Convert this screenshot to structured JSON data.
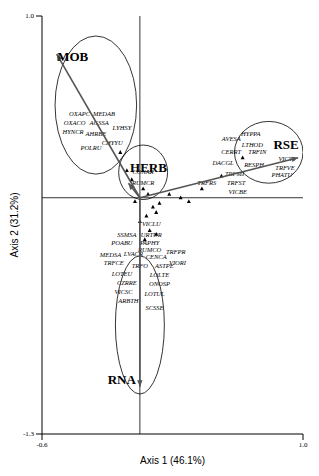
{
  "chart_data": {
    "type": "scatter",
    "x_label": "Axis 1 (46.1%)",
    "y_label": "Axis 2 (31.2%)",
    "xlim": [
      -0.6,
      1.0
    ],
    "ylim": [
      -1.3,
      1.0
    ],
    "xticks": [
      -0.6,
      {
        "value": 1.0,
        "label": "1.0"
      }
    ],
    "yticks": [
      -1.3,
      {
        "value": 1.0,
        "label": "1.0"
      }
    ],
    "reference_lines": {
      "x": 0,
      "y": 0
    },
    "marker": "triangle",
    "color": "#000000",
    "species": [
      {
        "label": "OXAPC",
        "x": -0.37,
        "y": 0.46
      },
      {
        "label": "MEDAB",
        "x": -0.22,
        "y": 0.46
      },
      {
        "label": "OXACO",
        "x": -0.4,
        "y": 0.41
      },
      {
        "label": "AGSSA",
        "x": -0.25,
        "y": 0.41
      },
      {
        "label": "HYNCR",
        "x": -0.41,
        "y": 0.36
      },
      {
        "label": "AHRBE",
        "x": -0.27,
        "y": 0.35
      },
      {
        "label": "LYHSY",
        "x": -0.11,
        "y": 0.38
      },
      {
        "label": "POLRU",
        "x": -0.3,
        "y": 0.27
      },
      {
        "label": "CHYYU",
        "x": -0.17,
        "y": 0.3
      },
      {
        "label": "CONAR",
        "x": 0.02,
        "y": 0.14
      },
      {
        "label": "RUMCR",
        "x": 0.02,
        "y": 0.08
      },
      {
        "label": "AVESA",
        "x": 0.56,
        "y": 0.32
      },
      {
        "label": "HYPPA",
        "x": 0.68,
        "y": 0.35
      },
      {
        "label": "LTHOD",
        "x": 0.69,
        "y": 0.29
      },
      {
        "label": "CERRT",
        "x": 0.56,
        "y": 0.25
      },
      {
        "label": "TRFIN",
        "x": 0.72,
        "y": 0.25
      },
      {
        "label": "DACGL",
        "x": 0.51,
        "y": 0.19
      },
      {
        "label": "RESPH",
        "x": 0.7,
        "y": 0.18
      },
      {
        "label": "VICVI",
        "x": 0.9,
        "y": 0.21
      },
      {
        "label": "TRFVE",
        "x": 0.89,
        "y": 0.16
      },
      {
        "label": "PHATU",
        "x": 0.87,
        "y": 0.12
      },
      {
        "label": "TRFMI",
        "x": 0.58,
        "y": 0.13
      },
      {
        "label": "TRFRS",
        "x": 0.41,
        "y": 0.08
      },
      {
        "label": "TRFST",
        "x": 0.59,
        "y": 0.08
      },
      {
        "label": "VICBE",
        "x": 0.6,
        "y": 0.03
      },
      {
        "label": "VICLU",
        "x": 0.07,
        "y": -0.15
      },
      {
        "label": "URTUR",
        "x": 0.07,
        "y": -0.21
      },
      {
        "label": "SSMSA",
        "x": -0.08,
        "y": -0.21
      },
      {
        "label": "POABU",
        "x": -0.11,
        "y": -0.25
      },
      {
        "label": "PAPHY",
        "x": 0.06,
        "y": -0.25
      },
      {
        "label": "RUMCO",
        "x": 0.06,
        "y": -0.29
      },
      {
        "label": "TRFPR",
        "x": 0.22,
        "y": -0.3
      },
      {
        "label": "MEDSA",
        "x": -0.18,
        "y": -0.32
      },
      {
        "label": "LVACR",
        "x": -0.04,
        "y": -0.31
      },
      {
        "label": "CENCA",
        "x": 0.1,
        "y": -0.33
      },
      {
        "label": "VIORI",
        "x": 0.23,
        "y": -0.36
      },
      {
        "label": "TRFCE",
        "x": -0.16,
        "y": -0.36
      },
      {
        "label": "TRFO",
        "x": 0.0,
        "y": -0.38
      },
      {
        "label": "ASTPE",
        "x": 0.15,
        "y": -0.38
      },
      {
        "label": "LOTEU",
        "x": -0.11,
        "y": -0.42
      },
      {
        "label": "LOLTE",
        "x": 0.12,
        "y": -0.43
      },
      {
        "label": "CZRRE",
        "x": -0.08,
        "y": -0.47
      },
      {
        "label": "ONOSP",
        "x": 0.12,
        "y": -0.48
      },
      {
        "label": "VICSC",
        "x": -0.1,
        "y": -0.52
      },
      {
        "label": "LOTUL",
        "x": 0.09,
        "y": -0.53
      },
      {
        "label": "ARBTH",
        "x": -0.07,
        "y": -0.57
      },
      {
        "label": "SCSSE",
        "x": 0.09,
        "y": -0.61
      }
    ],
    "points": [
      {
        "x": 0.02,
        "y": 0.05
      },
      {
        "x": 0.05,
        "y": 0.02
      },
      {
        "x": -0.03,
        "y": -0.02
      },
      {
        "x": 0.08,
        "y": -0.05
      },
      {
        "x": 0.1,
        "y": -0.08
      },
      {
        "x": 0.04,
        "y": -0.1
      },
      {
        "x": 0.12,
        "y": -0.03
      },
      {
        "x": 0.18,
        "y": 0.02
      },
      {
        "x": 0.25,
        "y": 0.0
      },
      {
        "x": 0.3,
        "y": -0.02
      },
      {
        "x": -0.05,
        "y": 0.1
      },
      {
        "x": -0.08,
        "y": 0.15
      },
      {
        "x": 0.0,
        "y": -0.13
      },
      {
        "x": 0.06,
        "y": -0.18
      },
      {
        "x": 0.1,
        "y": -0.2
      },
      {
        "x": 0.03,
        "y": -0.23
      },
      {
        "x": -0.12,
        "y": 0.25
      },
      {
        "x": 0.38,
        "y": 0.05
      },
      {
        "x": 0.5,
        "y": 0.12
      },
      {
        "x": 0.63,
        "y": 0.22
      }
    ],
    "arrows": [
      {
        "label": "MOB",
        "x": -0.51,
        "y": 0.79
      },
      {
        "label": "HERB",
        "x": -0.07,
        "y": 0.08
      },
      {
        "label": "RSE",
        "x": 0.97,
        "y": 0.22
      },
      {
        "label": "RNA",
        "x": 0.0,
        "y": -1.04
      }
    ],
    "ellipses": [
      {
        "x": -0.27,
        "y": 0.51,
        "rx": 0.25,
        "ry": 0.38
      },
      {
        "x": 0.02,
        "y": 0.14,
        "rx": 0.15,
        "ry": 0.15
      },
      {
        "x": 0.79,
        "y": 0.25,
        "rx": 0.21,
        "ry": 0.17
      },
      {
        "x": 0.0,
        "y": -0.7,
        "rx": 0.15,
        "ry": 0.38
      }
    ]
  }
}
